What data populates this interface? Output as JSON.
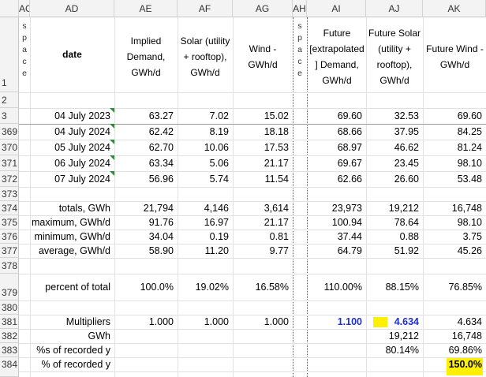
{
  "columns": [
    {
      "id": "AC",
      "label": "AC"
    },
    {
      "id": "AD",
      "label": "AD"
    },
    {
      "id": "AE",
      "label": "AE"
    },
    {
      "id": "AF",
      "label": "AF"
    },
    {
      "id": "AG",
      "label": "AG"
    },
    {
      "id": "AH",
      "label": "AH"
    },
    {
      "id": "AI",
      "label": "AI"
    },
    {
      "id": "AJ",
      "label": "AJ"
    },
    {
      "id": "AK",
      "label": "AK"
    }
  ],
  "headers": {
    "date": "date",
    "implied_demand": "Implied Demand, GWh/d",
    "solar": "Solar (utility + rooftop), GWh/d",
    "wind": "Wind - GWh/d",
    "future_demand": "Future [extrapolated ] Demand, GWh/d",
    "future_solar": "Future Solar (utility + rooftop), GWh/d",
    "future_wind": "Future Wind - GWh/d",
    "space_letters": [
      "s",
      "p",
      "a",
      "c",
      "e"
    ]
  },
  "row_numbers": [
    "1",
    "2",
    "3",
    "369",
    "370",
    "371",
    "372",
    "373",
    "374",
    "375",
    "376",
    "377",
    "378",
    "379",
    "380",
    "381",
    "382",
    "383",
    "384"
  ],
  "data_rows": [
    {
      "date": "04 July 2023",
      "ae": "63.27",
      "af": "7.02",
      "ag": "15.02",
      "ai": "69.60",
      "aj": "32.53",
      "ak": "69.60"
    },
    {
      "date": "04 July 2024",
      "ae": "62.42",
      "af": "8.19",
      "ag": "18.18",
      "ai": "68.66",
      "aj": "37.95",
      "ak": "84.25"
    },
    {
      "date": "05 July 2024",
      "ae": "62.70",
      "af": "10.06",
      "ag": "17.53",
      "ai": "68.97",
      "aj": "46.62",
      "ak": "81.24"
    },
    {
      "date": "06 July 2024",
      "ae": "63.34",
      "af": "5.06",
      "ag": "21.17",
      "ai": "69.67",
      "aj": "23.45",
      "ak": "98.10"
    },
    {
      "date": "07 July 2024",
      "ae": "56.96",
      "af": "5.74",
      "ag": "11.54",
      "ai": "62.66",
      "aj": "26.60",
      "ak": "53.48"
    }
  ],
  "stats_rows": [
    {
      "label": "totals, GWh",
      "ae": "21,794",
      "af": "4,146",
      "ag": "3,614",
      "ai": "23,973",
      "aj": "19,212",
      "ak": "16,748"
    },
    {
      "label": "maximum, GWh/d",
      "ae": "91.76",
      "af": "16.97",
      "ag": "21.17",
      "ai": "100.94",
      "aj": "78.64",
      "ak": "98.10"
    },
    {
      "label": "minimum, GWh/d",
      "ae": "34.04",
      "af": "0.19",
      "ag": "0.81",
      "ai": "37.44",
      "aj": "0.88",
      "ak": "3.75"
    },
    {
      "label": "average, GWh/d",
      "ae": "58.90",
      "af": "11.20",
      "ag": "9.77",
      "ai": "64.79",
      "aj": "51.92",
      "ak": "45.26"
    }
  ],
  "percent_row": {
    "label": "percent of total",
    "ae": "100.0%",
    "af": "19.02%",
    "ag": "16.58%",
    "ai": "110.00%",
    "aj": "88.15%",
    "ak": "76.85%"
  },
  "multipliers_row": {
    "label": "Multipliers",
    "ae": "1.000",
    "af": "1.000",
    "ag": "1.000",
    "ai": "1.100",
    "aj": "4.634",
    "ak": "4.634"
  },
  "gwh_row": {
    "label": "GWh",
    "aj": "19,212",
    "ak": "16,748"
  },
  "pct_recorded_row": {
    "label": "%s of recorded y",
    "aj": "80.14%",
    "ak": "69.86%"
  },
  "pct_recorded_row2": {
    "label": "% of recorded y",
    "ak": "150.0%"
  },
  "colors": {
    "highlight": "#ffef00",
    "blue_value": "#1f2fd0",
    "comment_marker": "#2e8b3c"
  }
}
